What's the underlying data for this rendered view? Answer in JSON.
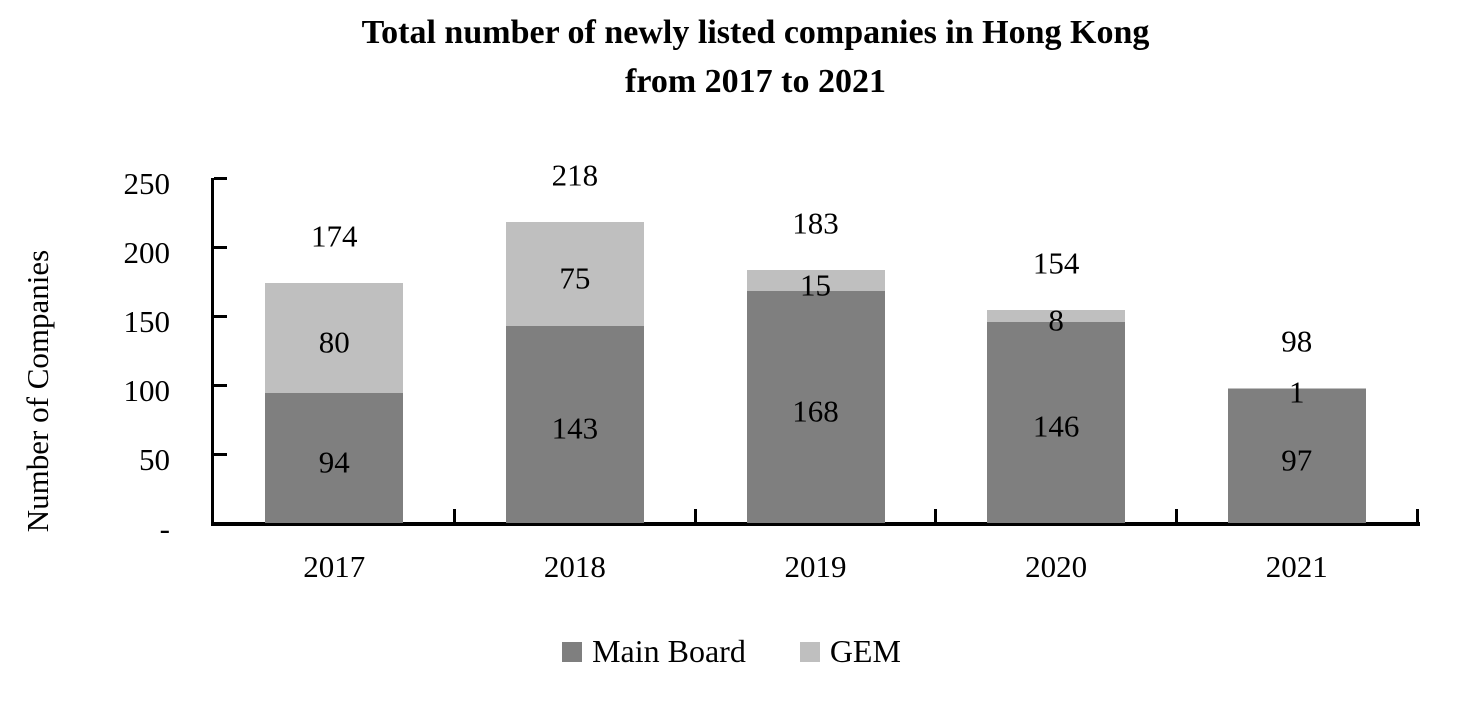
{
  "title": {
    "line1": "Total number of newly listed companies in Hong Kong",
    "line2": "from 2017 to 2021"
  },
  "chart_data": {
    "type": "bar",
    "stacked": true,
    "title": "Total number of newly listed companies in Hong Kong from 2017 to 2021",
    "ylabel": "Number of Companies",
    "xlabel": "",
    "categories": [
      "2017",
      "2018",
      "2019",
      "2020",
      "2021"
    ],
    "series": [
      {
        "name": "Main Board",
        "color": "#7f7f7f",
        "values": [
          94,
          143,
          168,
          146,
          97
        ]
      },
      {
        "name": "GEM",
        "color": "#bfbfbf",
        "values": [
          80,
          75,
          15,
          8,
          1
        ]
      }
    ],
    "totals": [
      174,
      218,
      183,
      154,
      98
    ],
    "ylim": [
      0,
      250
    ],
    "ytick_step": 50,
    "ytick_labels": [
      "-",
      "50",
      "100",
      "150",
      "200",
      "250"
    ],
    "grid": false,
    "legend_position": "bottom",
    "tick_style": "inside",
    "text_color": "#000000",
    "axis_color": "#000000",
    "background_color": "#ffffff"
  }
}
